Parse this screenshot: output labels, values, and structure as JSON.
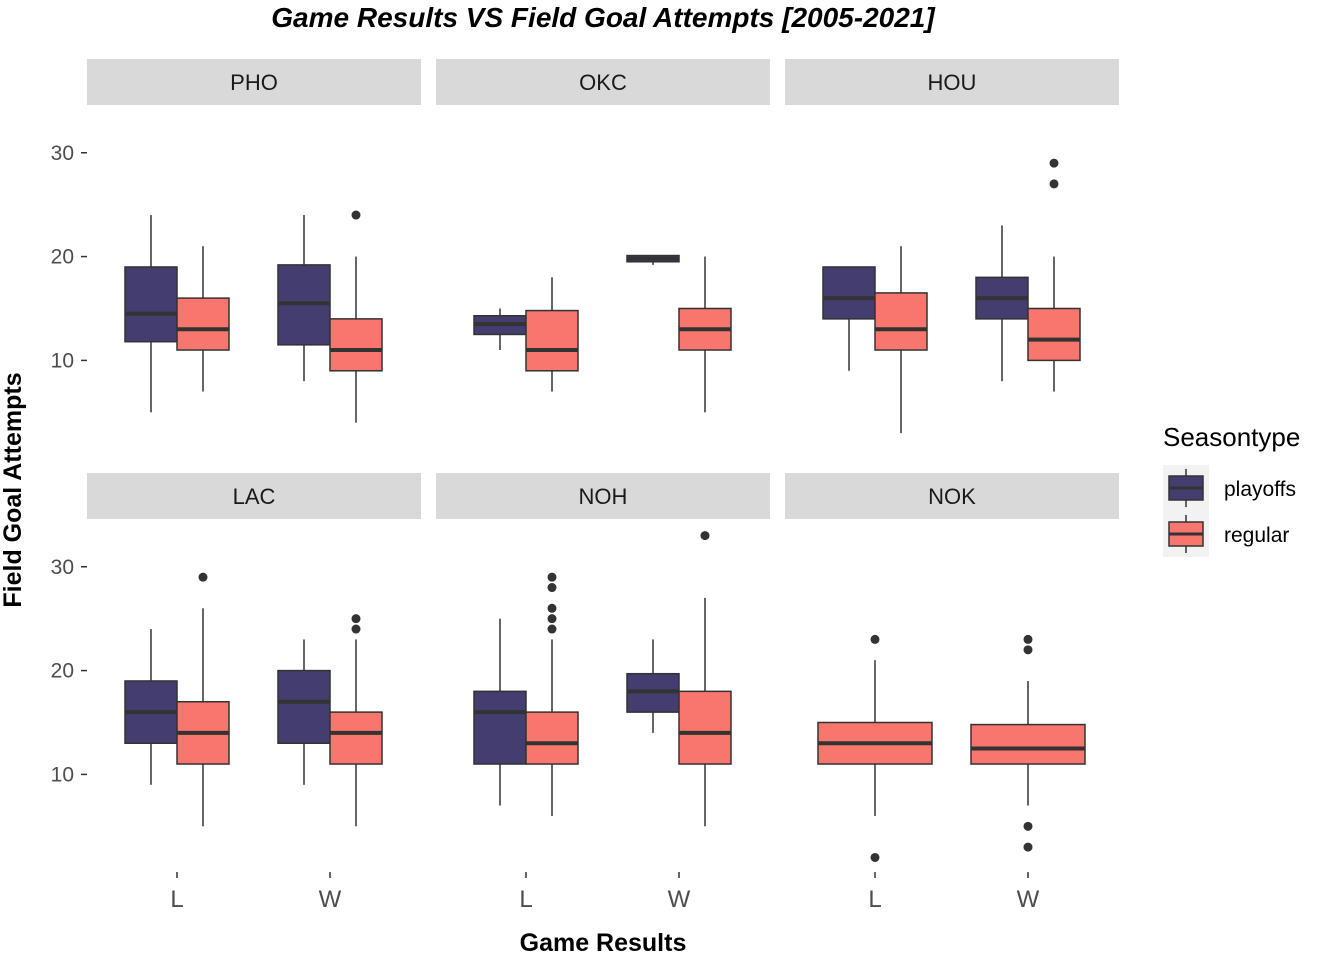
{
  "chart_data": {
    "type": "box",
    "title": "Game Results  VS  Field Goal Attempts [2005-2021]",
    "xlabel": "Game Results",
    "ylabel": "Field Goal Attempts",
    "categories": [
      "L",
      "W"
    ],
    "yticks": [
      10,
      20,
      30
    ],
    "ylim": [
      0.6,
      34.6
    ],
    "grid": false,
    "legend": {
      "title": "Seasontype",
      "position": "right",
      "entries": [
        {
          "name": "playoffs",
          "color": "#433e6f"
        },
        {
          "name": "regular",
          "color": "#f8766d"
        }
      ]
    },
    "colors": {
      "playoffs": "#433e6f",
      "regular": "#f8766d",
      "outline": "#333333",
      "strip": "#d9d9d9"
    },
    "facets": [
      {
        "label": "PHO",
        "boxes": [
          {
            "category": "L",
            "series": "playoffs",
            "min": 5,
            "q1": 11.8,
            "median": 14.5,
            "q3": 19,
            "max": 24,
            "outliers": []
          },
          {
            "category": "L",
            "series": "regular",
            "min": 7,
            "q1": 11,
            "median": 13,
            "q3": 16,
            "max": 21,
            "outliers": []
          },
          {
            "category": "W",
            "series": "playoffs",
            "min": 8,
            "q1": 11.5,
            "median": 15.5,
            "q3": 19.2,
            "max": 24,
            "outliers": []
          },
          {
            "category": "W",
            "series": "regular",
            "min": 4,
            "q1": 9,
            "median": 11,
            "q3": 14,
            "max": 20,
            "outliers": [
              24
            ]
          }
        ]
      },
      {
        "label": "OKC",
        "boxes": [
          {
            "category": "L",
            "series": "playoffs",
            "min": 11,
            "q1": 12.5,
            "median": 13.5,
            "q3": 14.3,
            "max": 15,
            "outliers": []
          },
          {
            "category": "L",
            "series": "regular",
            "min": 7,
            "q1": 9,
            "median": 11,
            "q3": 14.8,
            "max": 18,
            "outliers": []
          },
          {
            "category": "W",
            "series": "playoffs",
            "min": 19.2,
            "q1": 19.5,
            "median": 19.8,
            "q3": 20.1,
            "max": 20.1,
            "outliers": []
          },
          {
            "category": "W",
            "series": "regular",
            "min": 5,
            "q1": 11,
            "median": 13,
            "q3": 15,
            "max": 20,
            "outliers": []
          }
        ]
      },
      {
        "label": "HOU",
        "boxes": [
          {
            "category": "L",
            "series": "playoffs",
            "min": 9,
            "q1": 14,
            "median": 16,
            "q3": 19,
            "max": 19,
            "outliers": []
          },
          {
            "category": "L",
            "series": "regular",
            "min": 3,
            "q1": 11,
            "median": 13,
            "q3": 16.5,
            "max": 21,
            "outliers": []
          },
          {
            "category": "W",
            "series": "playoffs",
            "min": 8,
            "q1": 14,
            "median": 16,
            "q3": 18,
            "max": 23,
            "outliers": []
          },
          {
            "category": "W",
            "series": "regular",
            "min": 7,
            "q1": 10,
            "median": 12,
            "q3": 15,
            "max": 20,
            "outliers": [
              27,
              29
            ]
          }
        ]
      },
      {
        "label": "LAC",
        "boxes": [
          {
            "category": "L",
            "series": "playoffs",
            "min": 9,
            "q1": 13,
            "median": 16,
            "q3": 19,
            "max": 24,
            "outliers": []
          },
          {
            "category": "L",
            "series": "regular",
            "min": 5,
            "q1": 11,
            "median": 14,
            "q3": 17,
            "max": 26,
            "outliers": [
              29
            ]
          },
          {
            "category": "W",
            "series": "playoffs",
            "min": 9,
            "q1": 13,
            "median": 17,
            "q3": 20,
            "max": 23,
            "outliers": []
          },
          {
            "category": "W",
            "series": "regular",
            "min": 5,
            "q1": 11,
            "median": 14,
            "q3": 16,
            "max": 23,
            "outliers": [
              24,
              25
            ]
          }
        ]
      },
      {
        "label": "NOH",
        "boxes": [
          {
            "category": "L",
            "series": "playoffs",
            "min": 7,
            "q1": 11,
            "median": 16,
            "q3": 18,
            "max": 25,
            "outliers": []
          },
          {
            "category": "L",
            "series": "regular",
            "min": 6,
            "q1": 11,
            "median": 13,
            "q3": 16,
            "max": 23,
            "outliers": [
              24,
              25,
              26,
              28,
              29
            ]
          },
          {
            "category": "W",
            "series": "playoffs",
            "min": 14,
            "q1": 16,
            "median": 18,
            "q3": 19.7,
            "max": 23,
            "outliers": []
          },
          {
            "category": "W",
            "series": "regular",
            "min": 5,
            "q1": 11,
            "median": 14,
            "q3": 18,
            "max": 27,
            "outliers": [
              33
            ]
          }
        ]
      },
      {
        "label": "NOK",
        "boxes": [
          {
            "category": "L",
            "series": "regular",
            "min": 6,
            "q1": 11,
            "median": 13,
            "q3": 15,
            "max": 21,
            "outliers": [
              2,
              23
            ]
          },
          {
            "category": "W",
            "series": "regular",
            "min": 7,
            "q1": 11,
            "median": 12.5,
            "q3": 14.8,
            "max": 19,
            "outliers": [
              3,
              5,
              22,
              23
            ]
          }
        ]
      }
    ]
  }
}
